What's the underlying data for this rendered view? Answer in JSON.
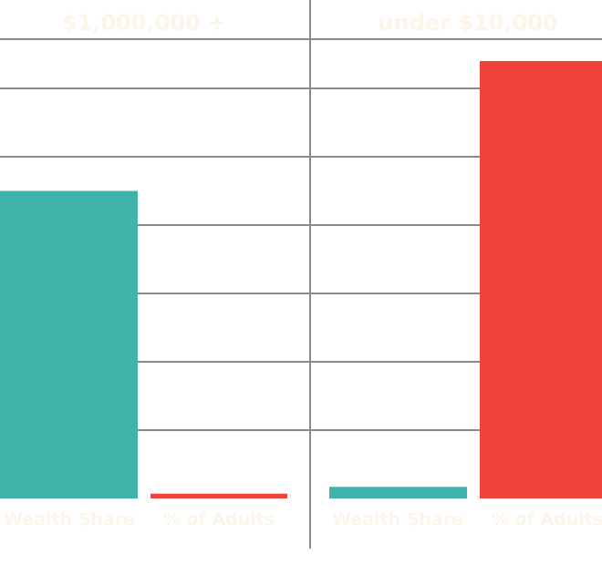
{
  "colors": {
    "wealth_share": "#40b3aa",
    "adults": "#ef4238",
    "grid": "#8a8a8a",
    "label_text": "#fcf5ea"
  },
  "chart_data": [
    {
      "type": "bar",
      "title": "$1,000,000 +",
      "categories": [
        "Wealth Share",
        "% of Adults"
      ],
      "values": [
        45,
        0.7
      ],
      "ylim": [
        0,
        65
      ],
      "grid": true
    },
    {
      "type": "bar",
      "title": "under $10,000",
      "categories": [
        "Wealth Share",
        "% of Adults"
      ],
      "values": [
        1.7,
        64
      ],
      "ylim": [
        0,
        65
      ],
      "grid": true
    }
  ]
}
